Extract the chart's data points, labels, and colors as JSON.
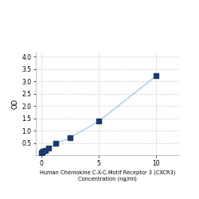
{
  "x_values": [
    0.0,
    0.078,
    0.156,
    0.313,
    0.625,
    1.25,
    2.5,
    5.0,
    10.0
  ],
  "y_values": [
    0.1,
    0.13,
    0.16,
    0.21,
    0.28,
    0.47,
    0.72,
    1.38,
    3.22
  ],
  "xlabel_line1": "Human Chemokine C-X-C-Motif Receptor 3 (CXCR3)",
  "xlabel_line2": "Concentration (ng/ml)",
  "ylabel": "OD",
  "xlim": [
    -0.5,
    12
  ],
  "ylim": [
    0,
    4.2
  ],
  "yticks": [
    0.5,
    1.0,
    1.5,
    2.0,
    2.5,
    3.0,
    3.5,
    4.0
  ],
  "xticks": [
    0,
    5,
    10
  ],
  "line_color": "#a8c8e8",
  "marker_color": "#1a3a6b",
  "marker_size": 18,
  "line_width": 1.0,
  "grid_color": "#d0d0d0",
  "bg_color": "#ffffff",
  "xlabel_fontsize": 4.8,
  "ylabel_fontsize": 6,
  "tick_fontsize": 5.5
}
